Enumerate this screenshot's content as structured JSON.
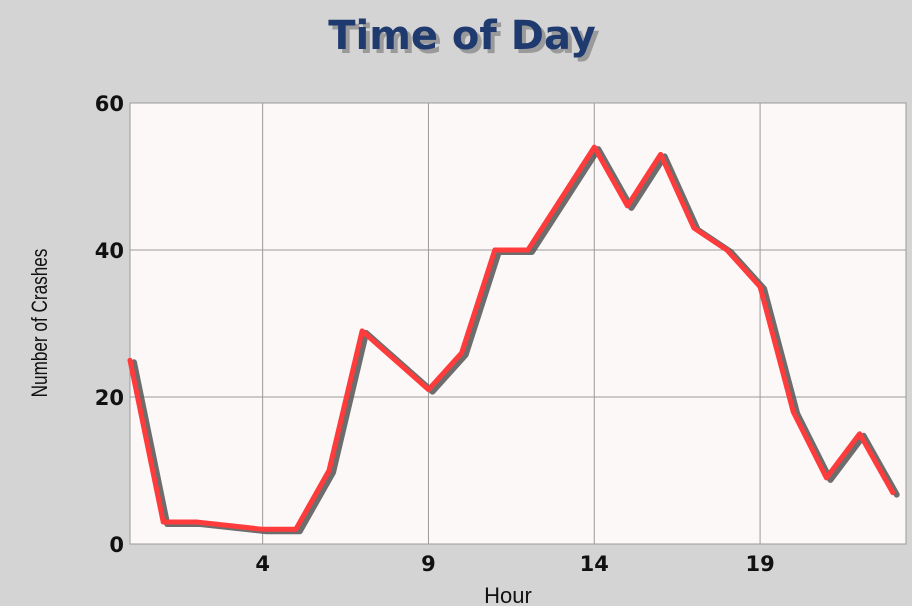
{
  "chart_data": {
    "type": "line",
    "title": "Time of Day",
    "xlabel": "Hour",
    "ylabel": "Number of Crashes",
    "xlim": [
      0,
      23.4
    ],
    "ylim": [
      0,
      60
    ],
    "xticks": [
      4,
      9,
      14,
      19
    ],
    "yticks": [
      0,
      20,
      40,
      60
    ],
    "grid": true,
    "series": [
      {
        "color": "#ff3b3b",
        "shadow_color": "#555555",
        "x": [
          0,
          1,
          2,
          3,
          4,
          5,
          6,
          7,
          8,
          9,
          10,
          11,
          12,
          13,
          14,
          15,
          16,
          17,
          18,
          19,
          20,
          21,
          22,
          23
        ],
        "values": [
          25,
          3,
          3,
          2.5,
          2,
          2,
          10,
          29,
          25,
          21,
          26,
          40,
          40,
          47,
          54,
          46,
          53,
          43,
          40,
          35,
          18,
          9,
          15,
          7
        ]
      }
    ],
    "colors": {
      "background": "#d4d4d4",
      "plot_background": "#fdf8f8",
      "grid": "#9a9a9a",
      "title": "#1f3a6e"
    }
  }
}
